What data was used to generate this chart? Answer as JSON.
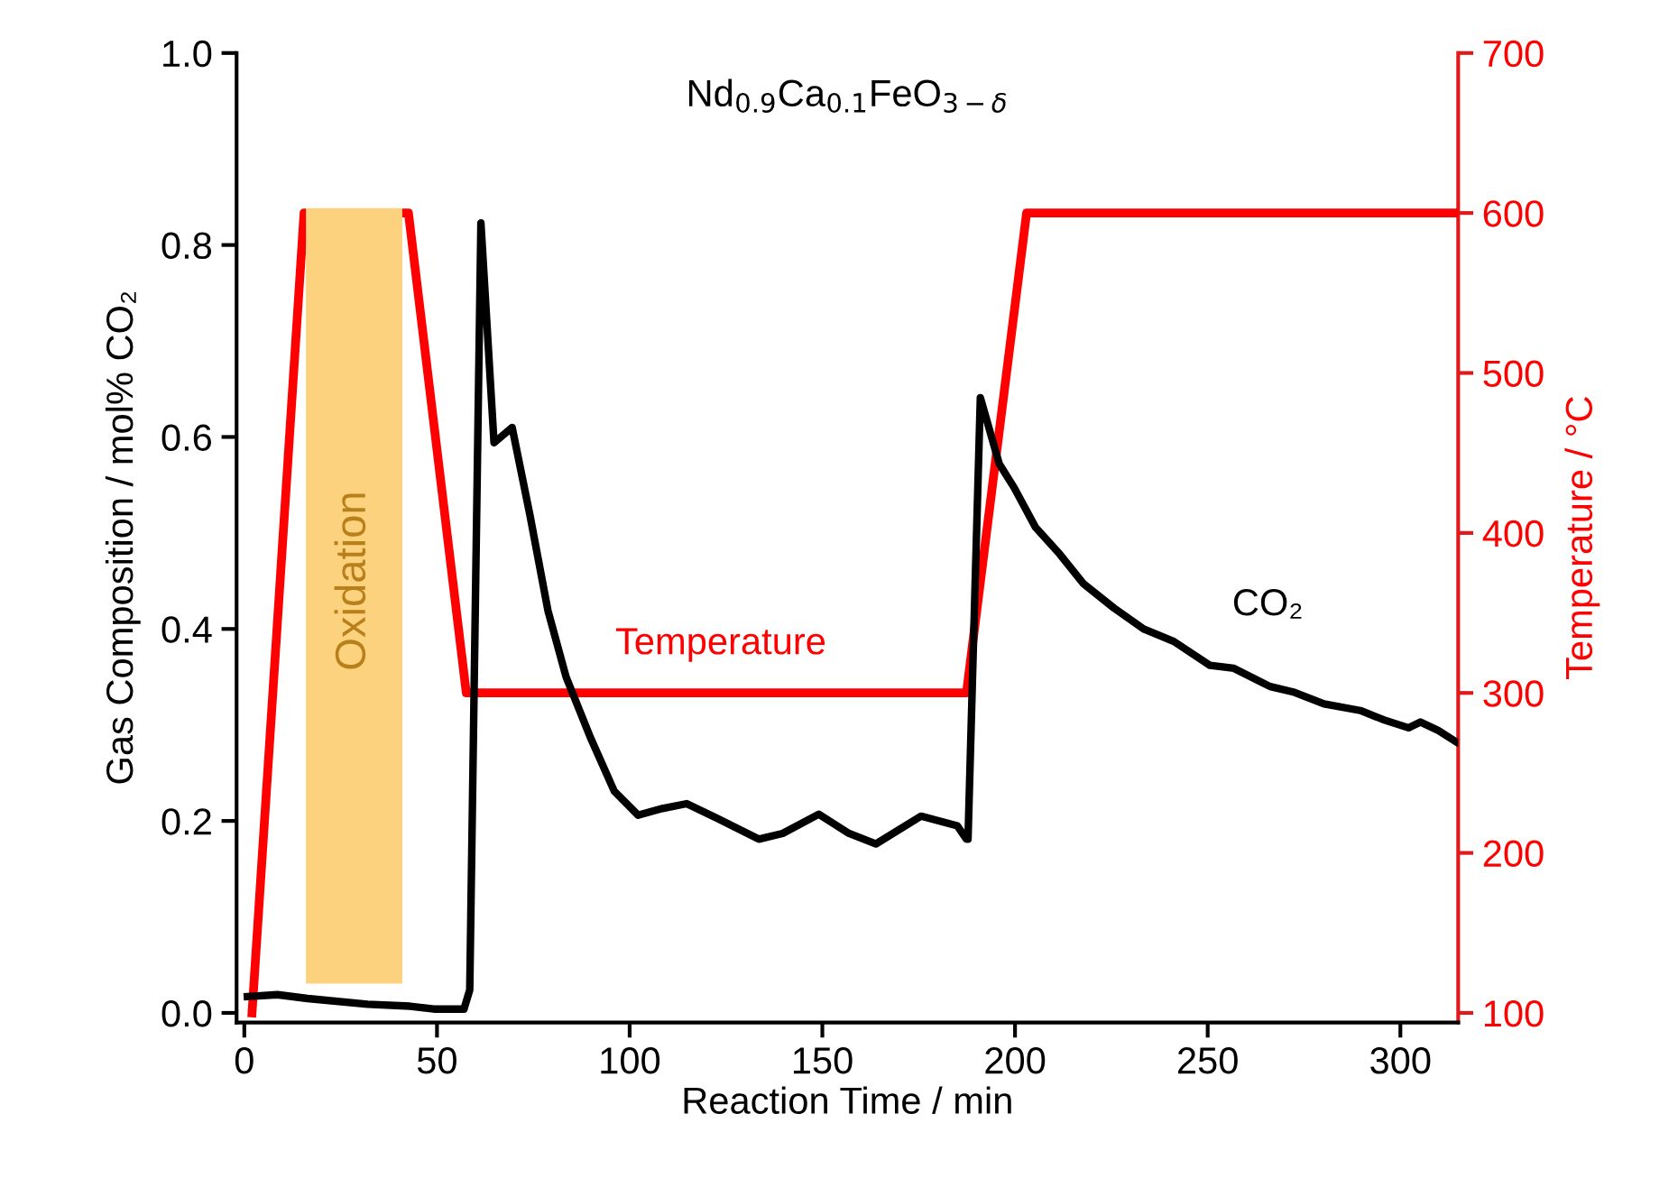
{
  "chart_data": {
    "type": "line",
    "title": "Nd$_{0.9}$Ca$_{0.1}$FeO$_{3−δ}$",
    "xlabel": "Reaction Time / min",
    "ylabel": "Gas Composition / mol% CO₂",
    "y2label": "Temperature / °C",
    "xlim": [
      -2,
      315
    ],
    "xticks": [
      0,
      50,
      100,
      150,
      200,
      250,
      300
    ],
    "ylim": [
      -0.01,
      1.0
    ],
    "yticks": [
      {
        "value": 0,
        "label": "0.0"
      },
      {
        "value": 0.2,
        "label": "0.2"
      },
      {
        "value": 0.4,
        "label": "0.4"
      },
      {
        "value": 0.6,
        "label": "0.6"
      },
      {
        "value": 0.8,
        "label": "0.8"
      },
      {
        "value": 1.0,
        "label": "1.0"
      }
    ],
    "y2lim": [
      94,
      700
    ],
    "y2ticks": [
      100,
      200,
      300,
      400,
      500,
      600,
      700
    ],
    "grid": false,
    "legend": false,
    "marker": "none",
    "line_style": "solid",
    "bands": [
      {
        "axis": "x",
        "from": 16,
        "to": 41,
        "label": "Oxidation",
        "color": "#fdd27f"
      }
    ],
    "series": [
      {
        "name": "CO₂",
        "color": "#000000",
        "x": [
          0.8,
          8.6,
          16.4,
          32,
          43,
          49.2,
          57,
          58.5,
          61.4,
          64.8,
          69.5,
          74.1,
          78.8,
          83.5,
          89.8,
          96,
          102.2,
          108.5,
          114.8,
          122.6,
          133.5,
          139.7,
          149.1,
          156.9,
          163.9,
          175.6,
          185,
          187.4,
          187.8,
          191,
          195.9,
          199.8,
          205.3,
          211.6,
          217.8,
          225.6,
          233.4,
          241.2,
          250.6,
          256.8,
          266.2,
          272.5,
          280.2,
          289.6,
          295.9,
          302.1,
          305.2,
          309.9,
          314.6
        ],
        "values": [
          0.017,
          0.019,
          0.015,
          0.009,
          0.007,
          0.004,
          0.004,
          0.024,
          0.823,
          0.594,
          0.61,
          0.519,
          0.419,
          0.35,
          0.287,
          0.231,
          0.206,
          0.213,
          0.218,
          0.203,
          0.181,
          0.187,
          0.207,
          0.187,
          0.176,
          0.205,
          0.195,
          0.181,
          0.181,
          0.641,
          0.572,
          0.547,
          0.506,
          0.478,
          0.447,
          0.422,
          0.4,
          0.387,
          0.362,
          0.359,
          0.34,
          0.334,
          0.322,
          0.315,
          0.305,
          0.297,
          0.303,
          0.294,
          0.282
        ]
      },
      {
        "name": "Temperature",
        "color": "#ff0000",
        "axis": "y2",
        "x": [
          2,
          15.5,
          42.6,
          57.6,
          187.4,
          203,
          315
        ],
        "values": [
          100,
          600,
          600,
          300,
          300,
          600,
          600
        ]
      }
    ]
  }
}
